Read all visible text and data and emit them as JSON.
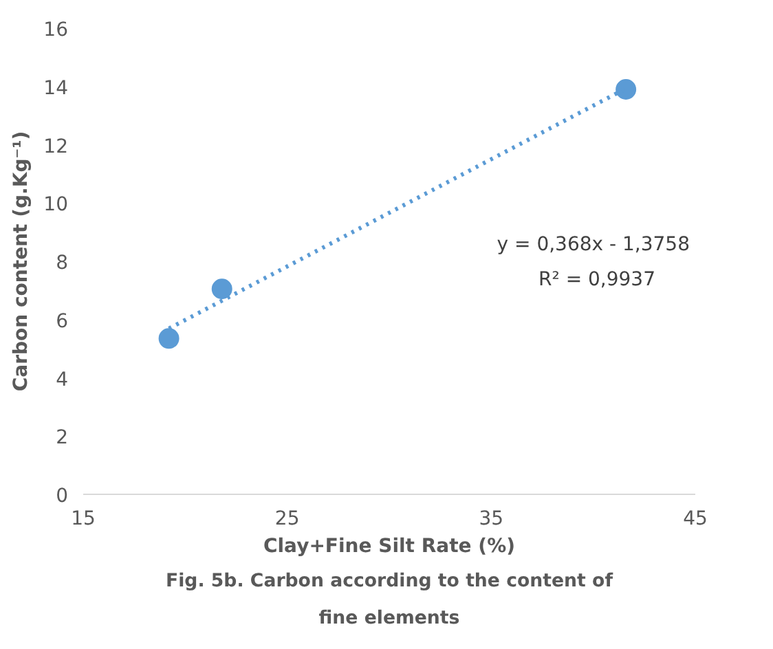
{
  "chart_data": {
    "type": "scatter",
    "xlabel": "Clay+Fine Silt Rate (%)",
    "ylabel": "Carbon content (g.Kg⁻¹)",
    "x": [
      19.2,
      21.8,
      41.6
    ],
    "series": [
      {
        "color": "#5b9bd5",
        "values": [
          5.35,
          7.05,
          13.9
        ],
        "marker": "circle"
      },
      {
        "type": "line",
        "color": "#5b9bd5",
        "x": [
          19.2,
          41.6
        ],
        "values": [
          5.69,
          13.93
        ],
        "line_style": "dotted"
      }
    ],
    "xlim": [
      15,
      45
    ],
    "xticks": [
      15,
      25,
      35,
      45
    ],
    "ylim": [
      0,
      16
    ],
    "yticks": [
      0,
      2,
      4,
      6,
      8,
      10,
      12,
      14,
      16
    ],
    "grid": false,
    "annotations": [
      "y = 0,368x - 1,3758",
      "R² = 0,9937",
      "Fig. 5b. Carbon according to the content of fine elements"
    ]
  }
}
